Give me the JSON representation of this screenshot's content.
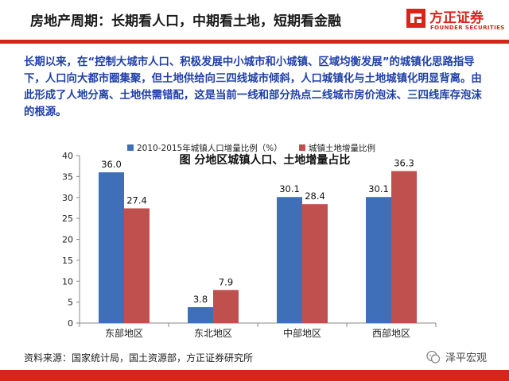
{
  "header": {
    "title": "房地产周期：长期看人口，中期看土地，短期看金融",
    "logo_cn": "方正证券",
    "logo_en": "FOUNDER SECURITIES"
  },
  "paragraph": "长期以来，在“控制大城市人口、积极发展中小城市和小城镇、区域均衡发展”的城镇化思路指导下，人口向大都市圈集聚，但土地供给向三四线城市倾斜，人口城镇化与土地城镇化明显背离。由此形成了人地分离、土地供需错配，这是当前一线和部分热点二线城市房价泡沫、三四线库存泡沫的根源。",
  "chart_data": {
    "type": "bar",
    "title": "图  分地区城镇人口、土地增量占比",
    "categories": [
      "东部地区",
      "东北地区",
      "中部地区",
      "西部地区"
    ],
    "series": [
      {
        "name": "2010-2015年城镇人口增量比例（%）",
        "values": [
          36.0,
          3.8,
          30.1,
          30.1
        ],
        "color": "#3f6fb8"
      },
      {
        "name": "城镇土地增量比例",
        "values": [
          27.4,
          7.9,
          28.4,
          36.3
        ],
        "color": "#c0504d"
      }
    ],
    "value_labels": [
      [
        "36.0",
        "3.8",
        "30.1",
        "30.1"
      ],
      [
        "27.4",
        "7.9",
        "28.4",
        "36.3"
      ]
    ],
    "ylim": [
      0,
      40
    ],
    "yticks": [
      "0",
      "5",
      "10",
      "15",
      "20",
      "25",
      "30",
      "35",
      "40"
    ],
    "grid": false,
    "legend": "top"
  },
  "footer": {
    "source": "资料来源：国家统计局，国土资源部，方正证券研究所",
    "watermark": "泽平宏观"
  }
}
